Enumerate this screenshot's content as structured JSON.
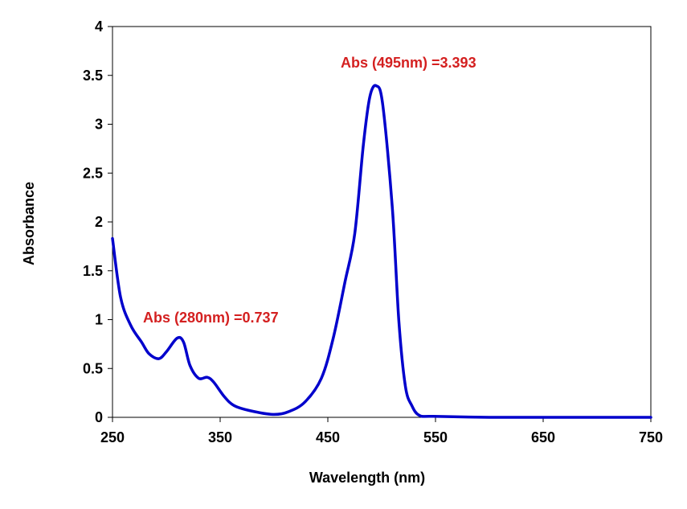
{
  "chart_data": {
    "type": "line",
    "title": "",
    "xlabel": "Wavelength (nm)",
    "ylabel": "Absorbance",
    "xlim": [
      250,
      750
    ],
    "ylim": [
      0,
      4
    ],
    "xticks": [
      250,
      350,
      450,
      550,
      650,
      750
    ],
    "yticks": [
      "0",
      "0.5",
      "1",
      "1.5",
      "2",
      "2.5",
      "3",
      "3.5",
      "4"
    ],
    "grid": false,
    "line_color": "#0000CC",
    "annotation_color": "#D42020",
    "annotations": [
      {
        "text": "Abs (280nm) =0.737",
        "x": 280,
        "y": 1.0
      },
      {
        "text": "Abs (495nm) =3.393",
        "x": 495,
        "y": 3.62
      }
    ],
    "series": [
      {
        "x": [
          250,
          257.5,
          267,
          277,
          284,
          293,
          300,
          310,
          316,
          322,
          330,
          338,
          344,
          354,
          363,
          377,
          399,
          414,
          429,
          444,
          455,
          466,
          475,
          483,
          489,
          495,
          501,
          510,
          516,
          522,
          528,
          535,
          548,
          600,
          650,
          700,
          750
        ],
        "y": [
          1.83,
          1.23,
          0.94,
          0.77,
          0.65,
          0.6,
          0.67,
          0.81,
          0.77,
          0.53,
          0.4,
          0.41,
          0.36,
          0.21,
          0.12,
          0.07,
          0.03,
          0.06,
          0.16,
          0.4,
          0.81,
          1.39,
          1.88,
          2.79,
          3.28,
          3.393,
          3.2,
          2.13,
          0.98,
          0.32,
          0.12,
          0.02,
          0.01,
          0.0,
          0.0,
          0.0,
          0.0
        ]
      }
    ]
  }
}
